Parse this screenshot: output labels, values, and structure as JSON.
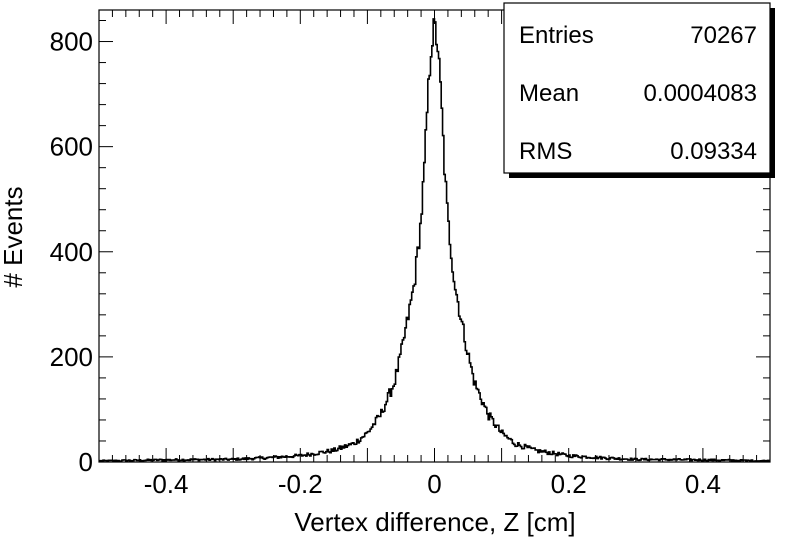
{
  "chart_data": {
    "type": "line",
    "style": "histogram-step",
    "xlabel": "Vertex difference, Z [cm]",
    "ylabel": "# Events",
    "xlim": [
      -0.5,
      0.5
    ],
    "ylim": [
      0,
      860
    ],
    "x_ticks": [
      -0.4,
      -0.2,
      0,
      0.2,
      0.4
    ],
    "x_tick_labels": [
      "-0.4",
      "-0.2",
      "0",
      "0.2",
      "0.4"
    ],
    "y_ticks": [
      0,
      200,
      400,
      600,
      800
    ],
    "y_tick_labels": [
      "0",
      "200",
      "400",
      "600",
      "800"
    ],
    "grid": false,
    "legend": "none",
    "bins": 500,
    "peak_value": 830,
    "x": [
      -0.5,
      -0.4,
      -0.3,
      -0.25,
      -0.2,
      -0.15,
      -0.12,
      -0.1,
      -0.08,
      -0.06,
      -0.05,
      -0.04,
      -0.03,
      -0.02,
      -0.015,
      -0.01,
      -0.005,
      0.0,
      0.005,
      0.01,
      0.015,
      0.02,
      0.03,
      0.04,
      0.05,
      0.06,
      0.08,
      0.1,
      0.12,
      0.15,
      0.2,
      0.25,
      0.3,
      0.4,
      0.5
    ],
    "y": [
      2,
      4,
      5,
      8,
      12,
      22,
      35,
      55,
      90,
      150,
      205,
      270,
      340,
      460,
      560,
      690,
      790,
      830,
      790,
      690,
      560,
      460,
      340,
      270,
      205,
      150,
      90,
      55,
      35,
      22,
      12,
      8,
      5,
      4,
      2
    ]
  },
  "stats_box": {
    "rows": [
      {
        "label": "Entries",
        "value": "70267"
      },
      {
        "label": "Mean",
        "value": "0.0004083"
      },
      {
        "label": "RMS",
        "value": "0.09334"
      }
    ]
  },
  "colors": {
    "line": "#000000",
    "frame": "#000000",
    "background": "#ffffff"
  }
}
